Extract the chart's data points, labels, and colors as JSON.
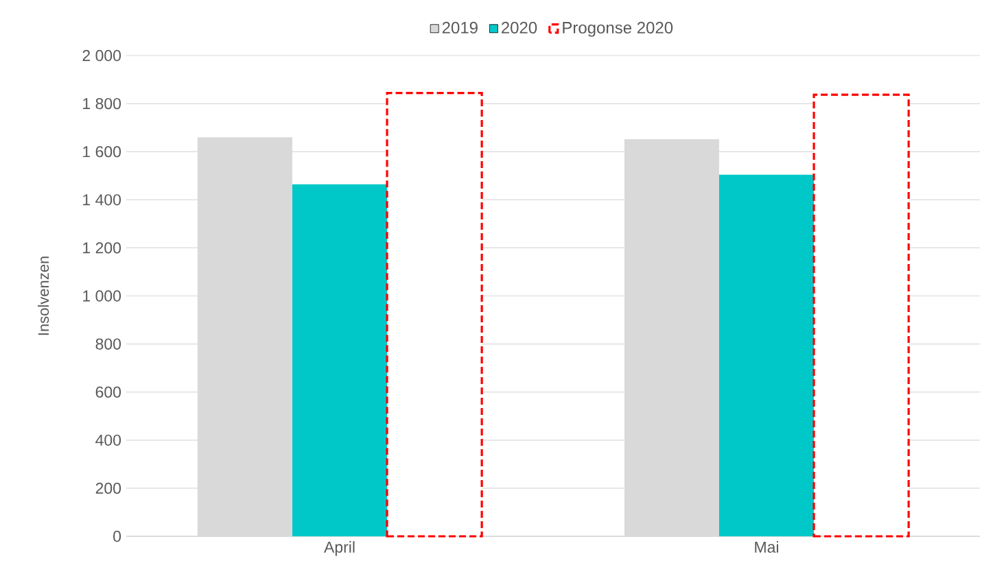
{
  "chart_data": {
    "type": "bar",
    "ylabel": "Insolvenzen",
    "categories": [
      "April",
      "Mai"
    ],
    "series": [
      {
        "name": "2019",
        "color": "#d9d9d9",
        "values": [
          1660,
          1652
        ]
      },
      {
        "name": "2020",
        "color": "#00c8c8",
        "values": [
          1464,
          1504
        ]
      },
      {
        "name": "Progonse 2020",
        "color": "#ff0000",
        "line_style": "dashed",
        "values": [
          1844,
          1837
        ]
      }
    ],
    "ylim": [
      0,
      2000
    ],
    "yticks": [
      0,
      200,
      400,
      600,
      800,
      {
        "value": 1000,
        "label": "1 000"
      },
      {
        "value": 1200,
        "label": "1 200"
      },
      {
        "value": 1400,
        "label": "1 400"
      },
      {
        "value": 1600,
        "label": "1 600"
      },
      {
        "value": 1800,
        "label": "1 800"
      },
      {
        "value": 2000,
        "label": "2 000"
      }
    ],
    "grid": "y",
    "legend": "top"
  }
}
